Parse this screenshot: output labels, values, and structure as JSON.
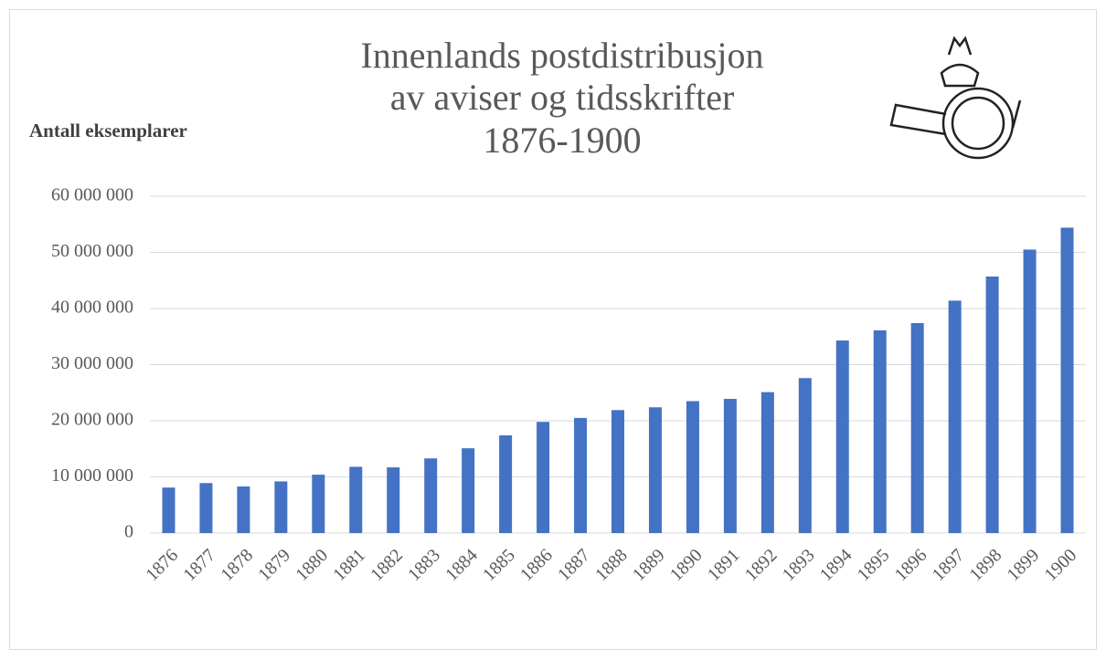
{
  "chart_data": {
    "type": "bar",
    "title": [
      "Innenlands postdistribusjon",
      "av aviser og tidsskrifter",
      "1876-1900"
    ],
    "y_label": "Antall eksemplarer",
    "categories": [
      "1876",
      "1877",
      "1878",
      "1879",
      "1880",
      "1881",
      "1882",
      "1883",
      "1884",
      "1885",
      "1886",
      "1887",
      "1888",
      "1889",
      "1890",
      "1891",
      "1892",
      "1893",
      "1894",
      "1895",
      "1896",
      "1897",
      "1898",
      "1899",
      "1900"
    ],
    "values": [
      8100000,
      8900000,
      8300000,
      9200000,
      10400000,
      11800000,
      11700000,
      13300000,
      15100000,
      17400000,
      19800000,
      20500000,
      21900000,
      22400000,
      23500000,
      23900000,
      25100000,
      27600000,
      34300000,
      36100000,
      37400000,
      41400000,
      45700000,
      50500000,
      54400000
    ],
    "color": "#4472c4",
    "ylim": [
      0,
      60000000
    ],
    "yticks": [
      0,
      {
        "value": 10000000,
        "label": "10 000 000"
      },
      {
        "value": 20000000,
        "label": "20 000 000"
      },
      {
        "value": 30000000,
        "label": "30 000 000"
      },
      {
        "value": 40000000,
        "label": "40 000 000"
      },
      {
        "value": 50000000,
        "label": "50 000 000"
      },
      {
        "value": 60000000,
        "label": "60 000 000"
      }
    ],
    "grid": true
  }
}
